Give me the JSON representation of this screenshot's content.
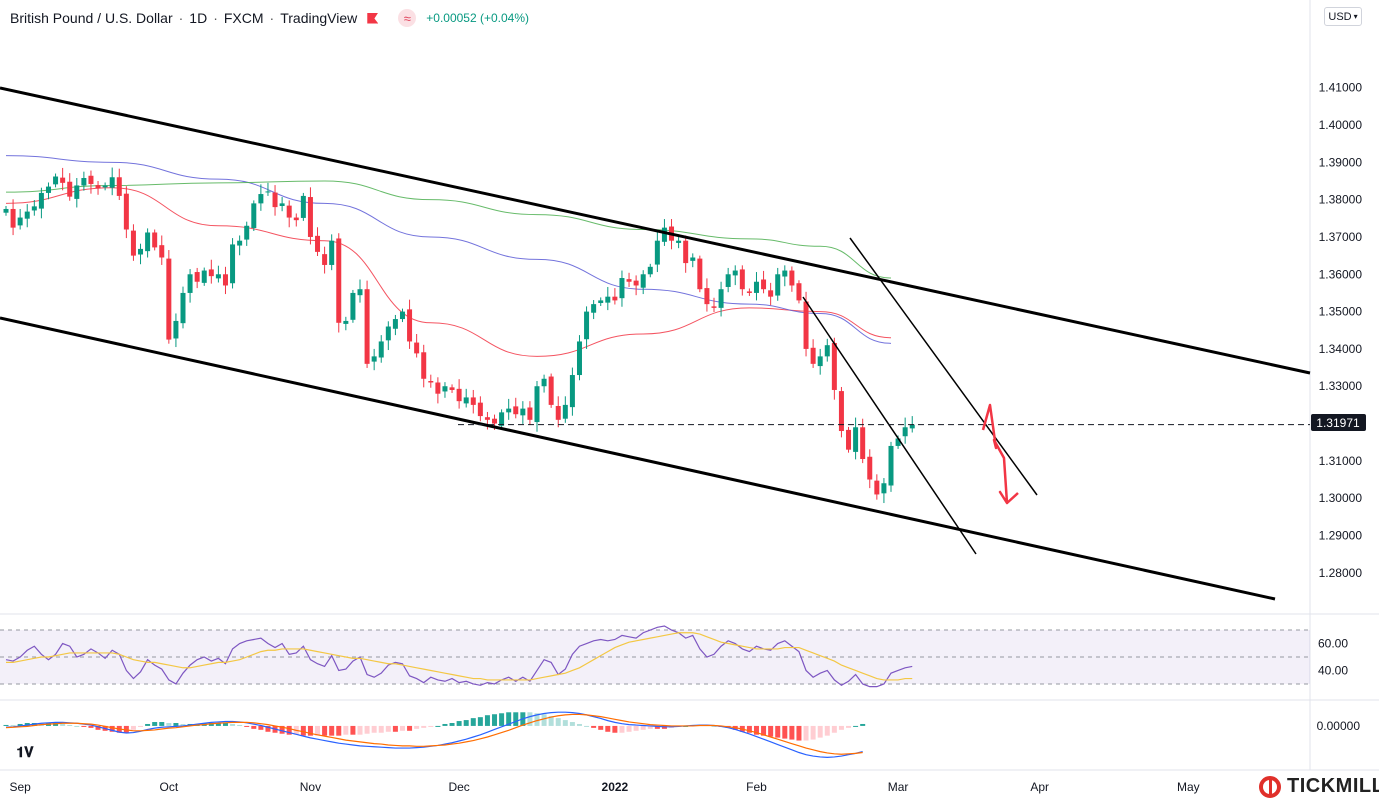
{
  "header": {
    "symbol": "British Pound / U.S. Dollar",
    "interval": "1D",
    "broker": "FXCM",
    "platform": "TradingView",
    "change": "+0.00052 (+0.04%)"
  },
  "currency_button": "USD",
  "last_price_label": "1.31971",
  "logo_text": "TICKMILL",
  "chart_data": [
    {
      "type": "candlestick",
      "title": "",
      "x_axis_labels": [
        "Sep",
        "Oct",
        "Nov",
        "Dec",
        "2022",
        "Feb",
        "Mar",
        "Apr",
        "May"
      ],
      "y_ticks": [
        1.28,
        1.29,
        1.3,
        1.31,
        1.32,
        1.33,
        1.34,
        1.35,
        1.36,
        1.37,
        1.38,
        1.39,
        1.4,
        1.41
      ],
      "y_tick_labels": [
        "1.28000",
        "1.29000",
        "1.30000",
        "1.31000",
        "1.32000",
        "1.33000",
        "1.34000",
        "1.35000",
        "1.36000",
        "1.37000",
        "1.38000",
        "1.39000",
        "1.40000",
        "1.41000"
      ],
      "ylim": [
        1.2695,
        1.4335
      ],
      "last_price": 1.31971,
      "closes": [
        1.3775,
        1.3725,
        1.3752,
        1.3768,
        1.3782,
        1.3818,
        1.3835,
        1.3862,
        1.3845,
        1.3808,
        1.3838,
        1.3858,
        1.3842,
        1.383,
        1.3838,
        1.386,
        1.381,
        1.372,
        1.365,
        1.3668,
        1.3712,
        1.3672,
        1.3645,
        1.3425,
        1.3475,
        1.355,
        1.36,
        1.358,
        1.361,
        1.3595,
        1.36,
        1.357,
        1.368,
        1.369,
        1.373,
        1.379,
        1.3815,
        1.3822,
        1.378,
        1.379,
        1.3752,
        1.3745,
        1.381,
        1.37,
        1.366,
        1.3625,
        1.369,
        1.347,
        1.3475,
        1.355,
        1.356,
        1.336,
        1.338,
        1.342,
        1.346,
        1.348,
        1.35,
        1.342,
        1.3388,
        1.332,
        1.331,
        1.328,
        1.33,
        1.329,
        1.326,
        1.327,
        1.325,
        1.322,
        1.321,
        1.32,
        1.323,
        1.324,
        1.3225,
        1.324,
        1.321,
        1.33,
        1.332,
        1.325,
        1.321,
        1.325,
        1.333,
        1.342,
        1.35,
        1.352,
        1.353,
        1.354,
        1.353,
        1.359,
        1.358,
        1.357,
        1.36,
        1.362,
        1.369,
        1.3725,
        1.369,
        1.369,
        1.363,
        1.3645,
        1.356,
        1.352,
        1.351,
        1.356,
        1.36,
        1.361,
        1.356,
        1.355,
        1.358,
        1.356,
        1.354,
        1.36,
        1.361,
        1.357,
        1.353,
        1.34,
        1.336,
        1.338,
        1.341,
        1.329,
        1.318,
        1.313,
        1.319,
        1.3105,
        1.305,
        1.301,
        1.304,
        1.314,
        1.316,
        1.319,
        1.3197
      ],
      "series": [
        {
          "name": "",
          "color": "#f23645",
          "values_by_index": [
            [
              0,
              1.379
            ],
            [
              15,
              1.3832
            ],
            [
              30,
              1.373
            ],
            [
              45,
              1.369
            ],
            [
              60,
              1.347
            ],
            [
              75,
              1.338
            ],
            [
              90,
              1.344
            ],
            [
              105,
              1.351
            ],
            [
              115,
              1.35
            ],
            [
              125,
              1.343
            ]
          ]
        },
        {
          "name": "",
          "color": "#5b5bd6",
          "values_by_index": [
            [
              0,
              1.3918
            ],
            [
              15,
              1.39
            ],
            [
              30,
              1.3855
            ],
            [
              45,
              1.379
            ],
            [
              60,
              1.37
            ],
            [
              75,
              1.364
            ],
            [
              90,
              1.356
            ],
            [
              105,
              1.352
            ],
            [
              115,
              1.3495
            ],
            [
              125,
              1.3415
            ]
          ]
        },
        {
          "name": "",
          "color": "#4caf50",
          "values_by_index": [
            [
              0,
              1.382
            ],
            [
              15,
              1.3838
            ],
            [
              30,
              1.3845
            ],
            [
              45,
              1.385
            ],
            [
              60,
              1.38
            ],
            [
              75,
              1.376
            ],
            [
              90,
              1.372
            ],
            [
              105,
              1.3695
            ],
            [
              115,
              1.3675
            ],
            [
              125,
              1.359
            ]
          ]
        }
      ],
      "annotations": [
        "descending channel",
        "inner descending channel",
        "support level 1.31971",
        "projected drop arrow"
      ]
    },
    {
      "type": "line",
      "title": "",
      "y_tick_labels": [
        "60.00",
        "40.00"
      ],
      "ylim": [
        27,
        73
      ],
      "bands": [
        70,
        50,
        30
      ],
      "series": [
        {
          "name": "",
          "color": "#7e57c2",
          "values": [
            48,
            47,
            50,
            55,
            58,
            52,
            48,
            52,
            60,
            58,
            50,
            52,
            56,
            53,
            49,
            55,
            52,
            40,
            34,
            39,
            48,
            44,
            41,
            33,
            30,
            38,
            44,
            48,
            50,
            47,
            49,
            45,
            56,
            60,
            62,
            63,
            64,
            60,
            57,
            60,
            52,
            53,
            58,
            48,
            45,
            43,
            51,
            40,
            41,
            47,
            50,
            37,
            35,
            38,
            44,
            46,
            45,
            36,
            34,
            31,
            35,
            33,
            32,
            34,
            31,
            32,
            30,
            29,
            31,
            30,
            33,
            35,
            32,
            35,
            32,
            40,
            48,
            46,
            37,
            41,
            52,
            58,
            60,
            62,
            63,
            62,
            63,
            66,
            65,
            64,
            68,
            70,
            72,
            73,
            70,
            68,
            64,
            66,
            56,
            50,
            52,
            58,
            62,
            60,
            56,
            54,
            58,
            56,
            55,
            60,
            62,
            58,
            54,
            40,
            35,
            38,
            40,
            33,
            29,
            32,
            37,
            30,
            28,
            28,
            30,
            38,
            40,
            42,
            43
          ]
        },
        {
          "name": "",
          "color": "#f3c744",
          "values": [
            46,
            46,
            47,
            48,
            49,
            50,
            50,
            51,
            52,
            53,
            53,
            53,
            53,
            53,
            53,
            53,
            52,
            50,
            48,
            47,
            46,
            46,
            45,
            44,
            43,
            42,
            42,
            43,
            44,
            45,
            46,
            46,
            47,
            48,
            50,
            52,
            54,
            55,
            55,
            56,
            56,
            56,
            56,
            55,
            54,
            53,
            52,
            51,
            50,
            49,
            49,
            48,
            47,
            46,
            45,
            45,
            44,
            43,
            42,
            41,
            40,
            39,
            38,
            37,
            36,
            35,
            34,
            34,
            33,
            33,
            33,
            33,
            33,
            33,
            33,
            34,
            35,
            36,
            37,
            38,
            40,
            42,
            45,
            48,
            51,
            54,
            57,
            59,
            61,
            62,
            63,
            64,
            65,
            66,
            67,
            68,
            68,
            68,
            67,
            65,
            63,
            61,
            60,
            59,
            58,
            57,
            56,
            56,
            56,
            56,
            57,
            57,
            57,
            55,
            53,
            51,
            49,
            47,
            44,
            42,
            40,
            38,
            36,
            34,
            33,
            33,
            33,
            34,
            34
          ]
        }
      ]
    },
    {
      "type": "bar",
      "title": "",
      "y_tick_labels": [
        "0.00000"
      ],
      "ylim": [
        -0.0095,
        0.0045
      ],
      "series": [
        {
          "name": "",
          "color": "#2962ff",
          "values": [
            -0.0003,
            -0.0002,
            0.0,
            0.0002,
            0.0004,
            0.0006,
            0.0007,
            0.0008,
            0.0008,
            0.0007,
            0.0006,
            0.0004,
            0.0002,
            -0.0002,
            -0.0006,
            -0.001,
            -0.0014,
            -0.0016,
            -0.0015,
            -0.0012,
            -0.0008,
            -0.0005,
            -0.0003,
            -0.0002,
            -0.0001,
            0.0,
            0.0002,
            0.0004,
            0.0006,
            0.0008,
            0.0009,
            0.001,
            0.001,
            0.0009,
            0.0007,
            0.0004,
            0.0001,
            -0.0003,
            -0.0007,
            -0.0011,
            -0.0015,
            -0.0019,
            -0.0023,
            -0.0027,
            -0.003,
            -0.0033,
            -0.0036,
            -0.0039,
            -0.0041,
            -0.0043,
            -0.0045,
            -0.0046,
            -0.0047,
            -0.0048,
            -0.0049,
            -0.005,
            -0.005,
            -0.005,
            -0.0049,
            -0.0048,
            -0.0046,
            -0.0044,
            -0.0041,
            -0.0038,
            -0.0034,
            -0.003,
            -0.0025,
            -0.002,
            -0.0014,
            -0.0008,
            -0.0002,
            0.0004,
            0.001,
            0.0016,
            0.0021,
            0.0025,
            0.0028,
            0.003,
            0.0031,
            0.0031,
            0.003,
            0.0028,
            0.0025,
            0.0021,
            0.0017,
            0.0012,
            0.0008,
            0.0005,
            0.0003,
            0.0002,
            0.0001,
            0.0,
            -0.0001,
            -0.0002,
            -0.0002,
            -0.0001,
            0.0,
            0.0001,
            0.0002,
            0.0002,
            0.0001,
            -0.0001,
            -0.0004,
            -0.0008,
            -0.0013,
            -0.0018,
            -0.0024,
            -0.003,
            -0.0036,
            -0.0042,
            -0.0048,
            -0.0054,
            -0.006,
            -0.0065,
            -0.0068,
            -0.007,
            -0.0071,
            -0.007,
            -0.0068,
            -0.0065,
            -0.0062,
            -0.0058
          ]
        },
        {
          "name": "",
          "color": "#ff6d00",
          "values": [
            -0.0004,
            -0.0003,
            -0.0002,
            -0.0001,
            0.0001,
            0.0003,
            0.0004,
            0.0005,
            0.0006,
            0.0006,
            0.0006,
            0.0005,
            0.0004,
            0.0002,
            -0.0001,
            -0.0004,
            -0.0007,
            -0.0009,
            -0.0011,
            -0.0011,
            -0.001,
            -0.0009,
            -0.0007,
            -0.0005,
            -0.0004,
            -0.0002,
            0.0,
            0.0002,
            0.0003,
            0.0005,
            0.0006,
            0.0007,
            0.0008,
            0.0008,
            0.0008,
            0.0007,
            0.0005,
            0.0003,
            0.0,
            -0.0003,
            -0.0006,
            -0.001,
            -0.0013,
            -0.0017,
            -0.002,
            -0.0023,
            -0.0026,
            -0.0029,
            -0.0032,
            -0.0034,
            -0.0036,
            -0.0038,
            -0.004,
            -0.0041,
            -0.0043,
            -0.0044,
            -0.0045,
            -0.0045,
            -0.0046,
            -0.0046,
            -0.0045,
            -0.0044,
            -0.0043,
            -0.0041,
            -0.0039,
            -0.0036,
            -0.0033,
            -0.0029,
            -0.0025,
            -0.002,
            -0.0015,
            -0.001,
            -0.0004,
            0.0002,
            0.0007,
            0.0012,
            0.0016,
            0.002,
            0.0023,
            0.0025,
            0.0026,
            0.0026,
            0.0025,
            0.0023,
            0.0021,
            0.0018,
            0.0015,
            0.0012,
            0.0009,
            0.0007,
            0.0005,
            0.0003,
            0.0002,
            0.0001,
            0.0,
            0.0,
            0.0,
            0.0,
            0.0001,
            0.0001,
            0.0001,
            0.0,
            -0.0002,
            -0.0004,
            -0.0007,
            -0.0011,
            -0.0015,
            -0.002,
            -0.0025,
            -0.003,
            -0.0035,
            -0.004,
            -0.0045,
            -0.005,
            -0.0054,
            -0.0058,
            -0.0061,
            -0.0063,
            -0.0064,
            -0.0063,
            -0.0062,
            -0.006
          ]
        }
      ]
    }
  ]
}
